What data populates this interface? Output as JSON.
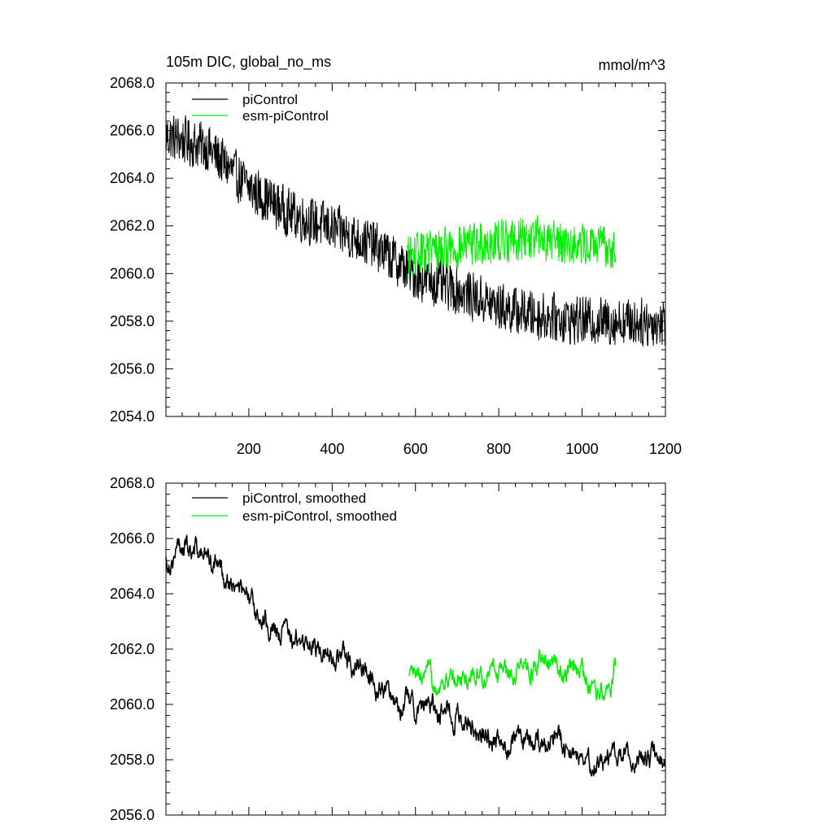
{
  "colors": {
    "piControl": "#000000",
    "esm_piControl": "#00ee00",
    "axis": "#000000",
    "background": "#ffffff"
  },
  "chart_data": [
    {
      "type": "line",
      "title": "105m DIC, global_no_ms",
      "units": "mmol/m^3",
      "xlim": [
        1,
        1200
      ],
      "ylim": [
        2054.0,
        2068.0
      ],
      "xticks": [
        200,
        400,
        600,
        800,
        1000,
        1200
      ],
      "xtick_labels": [
        "200",
        "400",
        "600",
        "800",
        "1000",
        "1200"
      ],
      "yticks": [
        2054.0,
        2056.0,
        2058.0,
        2060.0,
        2062.0,
        2064.0,
        2066.0,
        2068.0
      ],
      "ytick_labels": [
        "2054.0",
        "2056.0",
        "2058.0",
        "2060.0",
        "2062.0",
        "2064.0",
        "2066.0",
        "2068.0"
      ],
      "legend_placement": "top-left",
      "series": [
        {
          "name": "piControl",
          "color": "#000000",
          "noise_amplitude": 1.1,
          "x_start": 1,
          "x_end": 1200,
          "trend": [
            [
              1,
              2065.8
            ],
            [
              100,
              2065.3
            ],
            [
              200,
              2063.6
            ],
            [
              300,
              2062.5
            ],
            [
              400,
              2061.9
            ],
            [
              500,
              2061.2
            ],
            [
              600,
              2059.9
            ],
            [
              700,
              2059.3
            ],
            [
              800,
              2058.6
            ],
            [
              900,
              2058.2
            ],
            [
              1000,
              2058.0
            ],
            [
              1100,
              2058.0
            ],
            [
              1200,
              2057.9
            ]
          ]
        },
        {
          "name": "esm-piControl",
          "color": "#00ee00",
          "noise_amplitude": 1.0,
          "x_start": 580,
          "x_end": 1080,
          "trend": [
            [
              580,
              2060.7
            ],
            [
              650,
              2061.0
            ],
            [
              700,
              2061.1
            ],
            [
              800,
              2061.4
            ],
            [
              900,
              2061.5
            ],
            [
              1000,
              2061.2
            ],
            [
              1080,
              2061.1
            ]
          ]
        }
      ]
    },
    {
      "type": "line",
      "xlim": [
        1,
        1200
      ],
      "ylim": [
        2056.0,
        2068.0
      ],
      "xticks": [
        200,
        400,
        600,
        800,
        1000,
        1200
      ],
      "yticks": [
        2056.0,
        2058.0,
        2060.0,
        2062.0,
        2064.0,
        2066.0,
        2068.0
      ],
      "ytick_labels": [
        "2056.0",
        "2058.0",
        "2060.0",
        "2062.0",
        "2064.0",
        "2066.0",
        "2068.0"
      ],
      "legend_placement": "top-left",
      "series": [
        {
          "name": "piControl, smoothed",
          "color": "#000000",
          "noise_amplitude": 0.45,
          "x_start": 1,
          "x_end": 1200,
          "trend": [
            [
              1,
              2065.2
            ],
            [
              50,
              2065.8
            ],
            [
              100,
              2065.3
            ],
            [
              150,
              2064.6
            ],
            [
              200,
              2063.6
            ],
            [
              300,
              2062.4
            ],
            [
              400,
              2061.9
            ],
            [
              500,
              2061.0
            ],
            [
              550,
              2060.2
            ],
            [
              600,
              2060.0
            ],
            [
              700,
              2059.6
            ],
            [
              800,
              2058.6
            ],
            [
              900,
              2058.5
            ],
            [
              950,
              2058.6
            ],
            [
              1000,
              2058.0
            ],
            [
              1100,
              2058.1
            ],
            [
              1200,
              2058.0
            ]
          ]
        },
        {
          "name": "esm-piControl, smoothed",
          "color": "#00ee00",
          "noise_amplitude": 0.4,
          "x_start": 585,
          "x_end": 1080,
          "trend": [
            [
              585,
              2060.9
            ],
            [
              650,
              2060.8
            ],
            [
              700,
              2060.9
            ],
            [
              800,
              2061.3
            ],
            [
              900,
              2061.4
            ],
            [
              1000,
              2061.1
            ],
            [
              1040,
              2060.4
            ],
            [
              1080,
              2061.2
            ]
          ]
        }
      ]
    }
  ]
}
